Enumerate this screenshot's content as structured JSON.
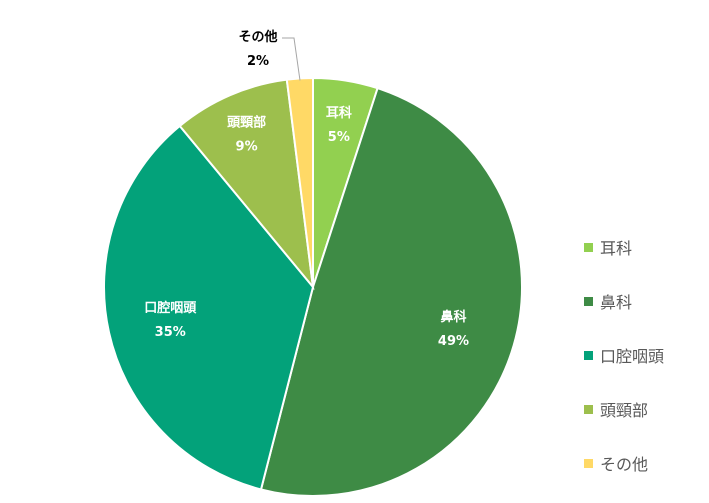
{
  "chart_data": {
    "type": "pie",
    "start_angle_deg": 0,
    "direction": "clockwise",
    "slices": [
      {
        "label": "耳科",
        "value": 5,
        "value_label": "5%",
        "color": "#92d050",
        "label_color": "#ffffff"
      },
      {
        "label": "鼻科",
        "value": 49,
        "value_label": "49%",
        "color": "#3e8b45",
        "label_color": "#ffffff"
      },
      {
        "label": "口腔咽頭",
        "value": 35,
        "value_label": "35%",
        "color": "#03a27a",
        "label_color": "#ffffff"
      },
      {
        "label": "頭頸部",
        "value": 9,
        "value_label": "9%",
        "color": "#9dbf4d",
        "label_color": "#ffffff"
      },
      {
        "label": "その他",
        "value": 2,
        "value_label": "2%",
        "color": "#ffd966",
        "label_color": "#000000",
        "callout": true
      }
    ],
    "legend": {
      "position": "right",
      "items": [
        "耳科",
        "鼻科",
        "口腔咽頭",
        "頭頸部",
        "その他"
      ]
    }
  }
}
